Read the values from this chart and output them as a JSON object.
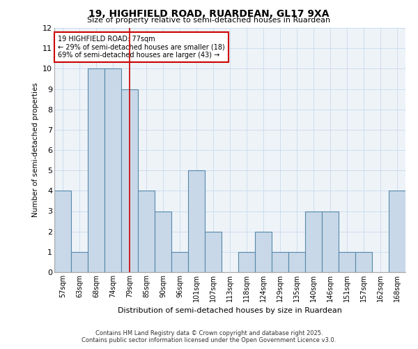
{
  "title1": "19, HIGHFIELD ROAD, RUARDEAN, GL17 9XA",
  "title2": "Size of property relative to semi-detached houses in Ruardean",
  "xlabel": "Distribution of semi-detached houses by size in Ruardean",
  "ylabel": "Number of semi-detached properties",
  "categories": [
    "57sqm",
    "63sqm",
    "68sqm",
    "74sqm",
    "79sqm",
    "85sqm",
    "90sqm",
    "96sqm",
    "101sqm",
    "107sqm",
    "113sqm",
    "118sqm",
    "124sqm",
    "129sqm",
    "135sqm",
    "140sqm",
    "146sqm",
    "151sqm",
    "157sqm",
    "162sqm",
    "168sqm"
  ],
  "values": [
    4,
    1,
    10,
    10,
    9,
    4,
    3,
    1,
    5,
    2,
    0,
    1,
    2,
    1,
    1,
    3,
    3,
    1,
    1,
    0,
    4
  ],
  "bar_color": "#c8d8e8",
  "bar_edge_color": "#5588aa",
  "bar_linewidth": 0.8,
  "vline_x_index": 4,
  "vline_color": "#cc0000",
  "annotation_title": "19 HIGHFIELD ROAD: 77sqm",
  "annotation_line1": "← 29% of semi-detached houses are smaller (18)",
  "annotation_line2": "69% of semi-detached houses are larger (43) →",
  "annotation_box_color": "#ffffff",
  "annotation_box_edge": "#cc0000",
  "ylim": [
    0,
    12
  ],
  "yticks": [
    0,
    1,
    2,
    3,
    4,
    5,
    6,
    7,
    8,
    9,
    10,
    11,
    12
  ],
  "grid_color": "#ccddee",
  "background_color": "#eef3f8",
  "footer1": "Contains HM Land Registry data © Crown copyright and database right 2025.",
  "footer2": "Contains public sector information licensed under the Open Government Licence v3.0."
}
